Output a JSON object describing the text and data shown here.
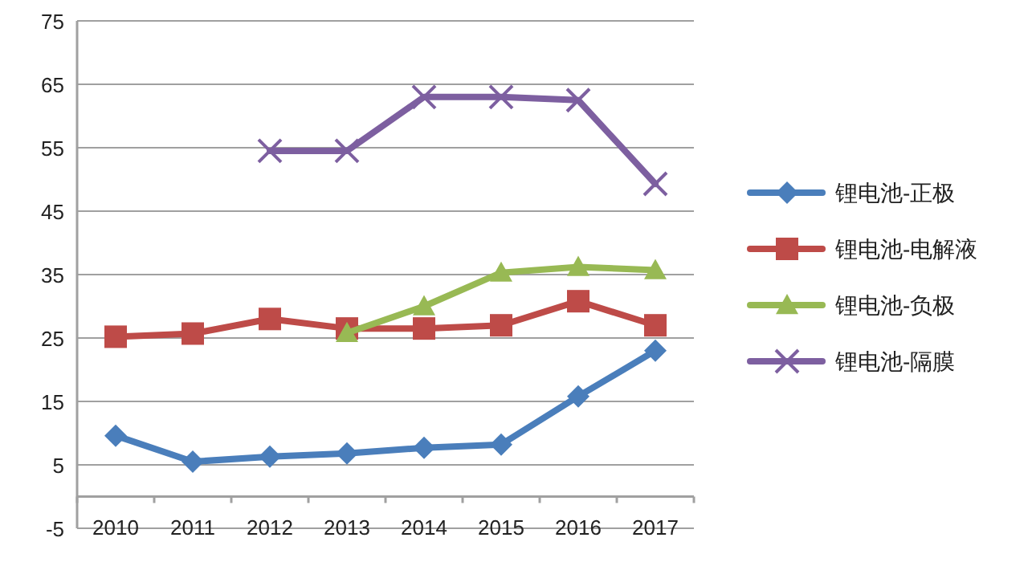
{
  "chart_data": {
    "type": "line",
    "categories": [
      "2010",
      "2011",
      "2012",
      "2013",
      "2014",
      "2015",
      "2016",
      "2017"
    ],
    "series": [
      {
        "name": "锂电池-正极",
        "color": "#4a7ebb",
        "marker": "diamond",
        "values": [
          9.6,
          5.5,
          6.3,
          6.8,
          7.7,
          8.2,
          15.8,
          23
        ]
      },
      {
        "name": "锂电池-电解液",
        "color": "#be4b48",
        "marker": "square",
        "values": [
          25.2,
          25.7,
          28,
          26.5,
          26.5,
          27,
          30.8,
          27
        ]
      },
      {
        "name": "锂电池-负极",
        "color": "#98b954",
        "marker": "triangle",
        "values": [
          null,
          null,
          null,
          25.8,
          30,
          35.3,
          36.2,
          35.7
        ]
      },
      {
        "name": "锂电池-隔膜",
        "color": "#7d5fa0",
        "marker": "cross",
        "values": [
          null,
          null,
          54.5,
          54.5,
          63,
          63,
          62.5,
          49.3
        ]
      }
    ],
    "ylim": [
      -5,
      75
    ],
    "yticks": [
      -5,
      5,
      15,
      25,
      35,
      45,
      55,
      65,
      75
    ],
    "grid": "y",
    "legend": "right",
    "ref_lines": [
      {
        "axis": "y",
        "value": 0,
        "color": "#a0a0a0"
      }
    ]
  }
}
